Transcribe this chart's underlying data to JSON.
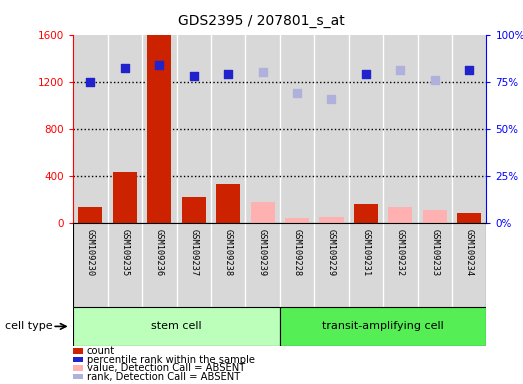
{
  "title": "GDS2395 / 207801_s_at",
  "samples": [
    "GSM109230",
    "GSM109235",
    "GSM109236",
    "GSM109237",
    "GSM109238",
    "GSM109239",
    "GSM109228",
    "GSM109229",
    "GSM109231",
    "GSM109232",
    "GSM109233",
    "GSM109234"
  ],
  "count_values": [
    130,
    430,
    1600,
    220,
    330,
    null,
    null,
    null,
    160,
    null,
    null,
    80
  ],
  "count_absent": [
    null,
    null,
    null,
    null,
    null,
    180,
    40,
    50,
    null,
    130,
    110,
    null
  ],
  "rank_pct_present": [
    75,
    82,
    84,
    78,
    79,
    null,
    null,
    null,
    79,
    null,
    null,
    81
  ],
  "rank_pct_absent": [
    null,
    null,
    null,
    null,
    null,
    80,
    69,
    66,
    null,
    81,
    76,
    null
  ],
  "ylim_left": [
    0,
    1600
  ],
  "ylim_right": [
    0,
    100
  ],
  "yticks_left": [
    0,
    400,
    800,
    1200,
    1600
  ],
  "yticks_right": [
    0,
    25,
    50,
    75,
    100
  ],
  "ytick_labels_left": [
    "0",
    "400",
    "800",
    "1200",
    "1600"
  ],
  "ytick_labels_right": [
    "0%",
    "25%",
    "50%",
    "75%",
    "100%"
  ],
  "color_count": "#cc2200",
  "color_count_absent": "#ffb0b0",
  "color_rank": "#2222cc",
  "color_rank_absent": "#b0b0dd",
  "color_stem_light": "#bbffbb",
  "color_transit_dark": "#55ee55",
  "bg_col": "#d8d8d8",
  "legend_items": [
    {
      "label": "count",
      "color": "#cc2200"
    },
    {
      "label": "percentile rank within the sample",
      "color": "#2222cc"
    },
    {
      "label": "value, Detection Call = ABSENT",
      "color": "#ffb0b0"
    },
    {
      "label": "rank, Detection Call = ABSENT",
      "color": "#b0b0dd"
    }
  ],
  "n_stem": 6,
  "n_transit": 6
}
